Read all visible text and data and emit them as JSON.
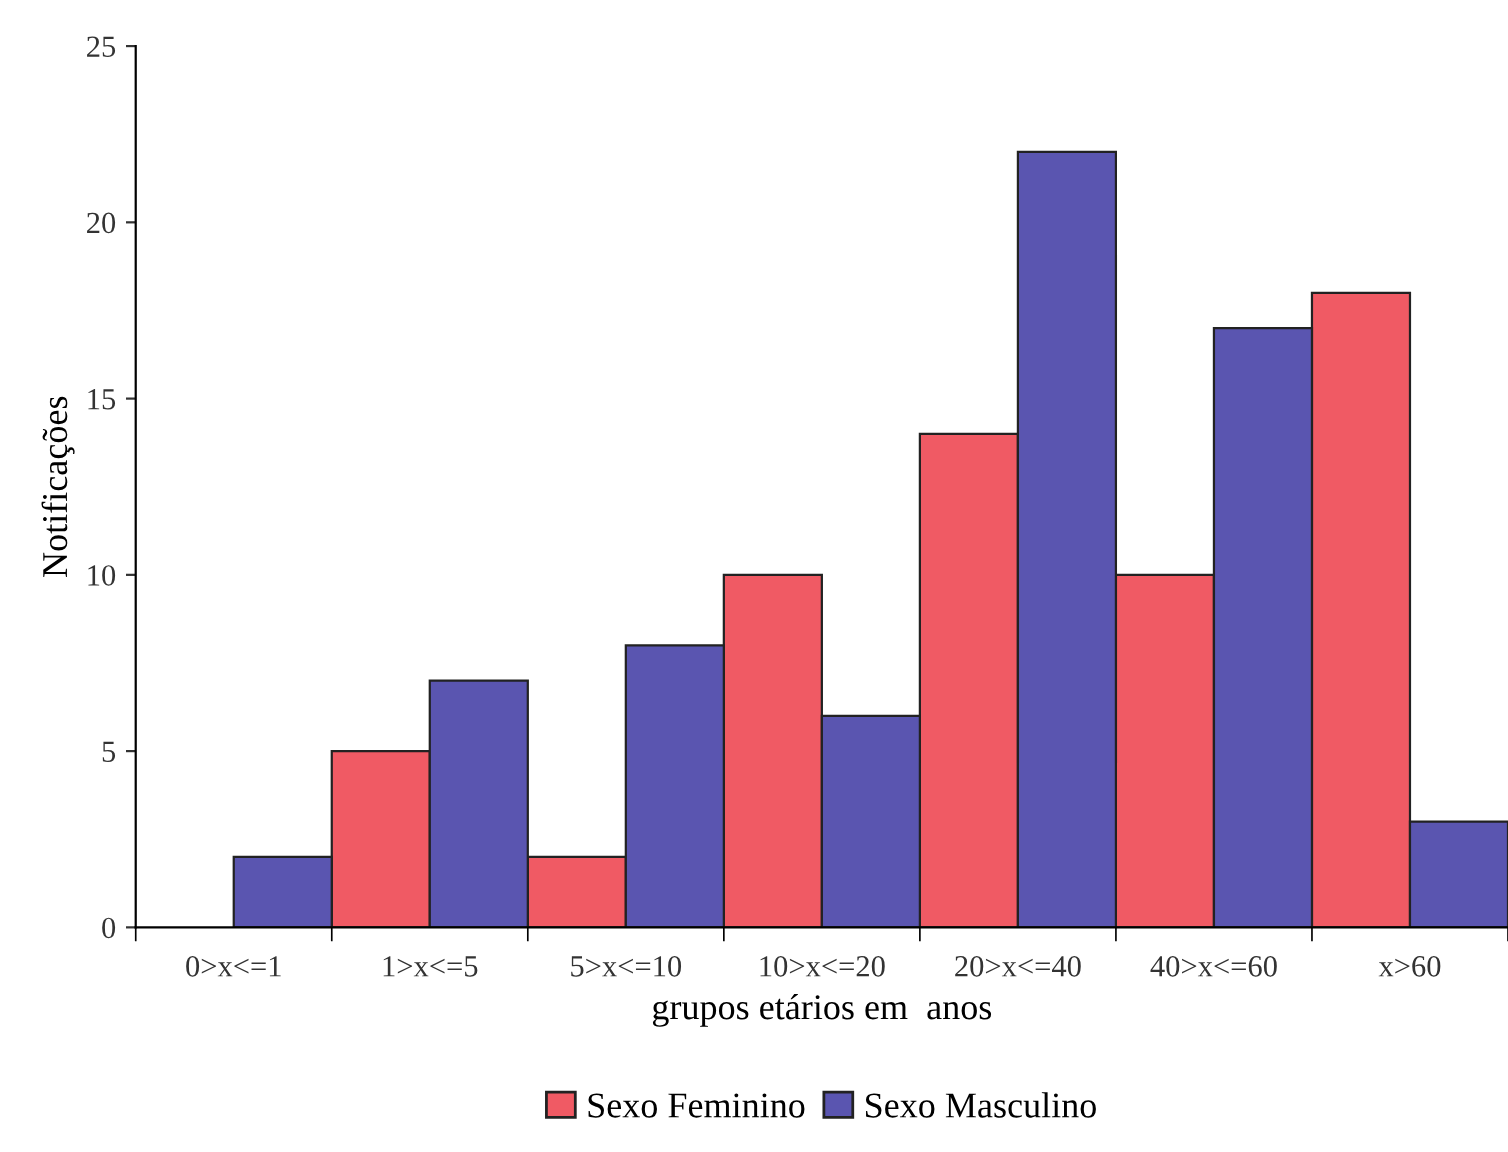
{
  "chart_data": {
    "type": "bar",
    "xlabel": "grupos etários em  anos",
    "ylabel": "Notificações",
    "categories": [
      "0>x<=1",
      "1>x<=5",
      "5>x<=10",
      "10>x<=20",
      "20>x<=40",
      "40>x<=60",
      "x>60"
    ],
    "series": [
      {
        "name": "Sexo Feminino",
        "color": "#f05a64",
        "values": [
          0,
          5,
          2,
          10,
          14,
          10,
          18
        ]
      },
      {
        "name": "Sexo Masculino",
        "color": "#5a55b0",
        "values": [
          2,
          7,
          8,
          6,
          22,
          17,
          3
        ]
      }
    ],
    "ylim": [
      0,
      25
    ],
    "yticks": [
      0,
      5,
      10,
      15,
      20,
      25
    ],
    "grid": false,
    "legend": "bottom"
  }
}
